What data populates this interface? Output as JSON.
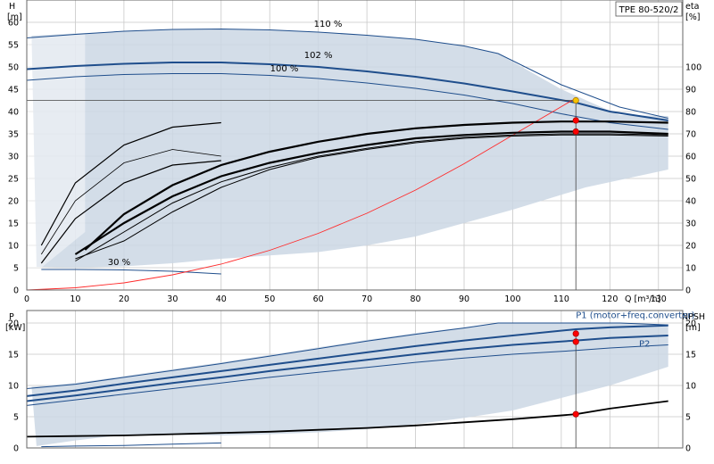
{
  "chart_data": [
    {
      "type": "line",
      "title": "TPE 80-520/2",
      "xlabel": "Q [m³/h]",
      "ylabel": "H",
      "ylabel_unit": "[m]",
      "y2label": "eta",
      "y2label_unit": "[%]",
      "xlim": [
        0,
        135
      ],
      "ylim": [
        0,
        65
      ],
      "y2lim": [
        0,
        130
      ],
      "x_ticks": [
        0,
        10,
        20,
        30,
        40,
        50,
        60,
        70,
        80,
        90,
        100,
        110,
        120,
        130
      ],
      "y_ticks": [
        0,
        5,
        10,
        15,
        20,
        25,
        30,
        35,
        40,
        45,
        50,
        55,
        60
      ],
      "y2_ticks": [
        0,
        10,
        20,
        30,
        40,
        50,
        60,
        70,
        80,
        90,
        100
      ],
      "grid": true,
      "curve_labels": [
        {
          "text": "110 %",
          "x": 62,
          "y": 59
        },
        {
          "text": "102 %",
          "x": 60,
          "y": 52
        },
        {
          "text": "100 %",
          "x": 53,
          "y": 49
        },
        {
          "text": "30 %",
          "x": 19,
          "y": 5.6
        }
      ],
      "envelope_upper": [
        [
          1,
          57
        ],
        [
          10,
          57.5
        ],
        [
          20,
          58
        ],
        [
          30,
          58.4
        ],
        [
          40,
          58.5
        ],
        [
          50,
          58.3
        ],
        [
          60,
          57.8
        ],
        [
          70,
          57.1
        ],
        [
          80,
          56.2
        ],
        [
          90,
          54.7
        ],
        [
          97,
          53
        ],
        [
          110,
          45
        ],
        [
          122,
          39.2
        ],
        [
          132,
          39
        ]
      ],
      "envelope_lower": [
        [
          132,
          27
        ],
        [
          115,
          23
        ],
        [
          100,
          18
        ],
        [
          90,
          15
        ],
        [
          80,
          12
        ],
        [
          70,
          10
        ],
        [
          60,
          8.5
        ],
        [
          40,
          7
        ],
        [
          30,
          6
        ],
        [
          20,
          5.3
        ],
        [
          10,
          5
        ],
        [
          2,
          5.2
        ]
      ],
      "efficiency_band_upper": [
        [
          12,
          13
        ],
        [
          20,
          21.5
        ],
        [
          30,
          26.5
        ],
        [
          40,
          30
        ],
        [
          50,
          33
        ],
        [
          60,
          35
        ],
        [
          70,
          36.5
        ],
        [
          80,
          37.5
        ],
        [
          90,
          37.5
        ],
        [
          100,
          38
        ],
        [
          110,
          38
        ],
        [
          120,
          38
        ],
        [
          132,
          38.5
        ]
      ],
      "series": [
        {
          "name": "110 %",
          "x": [
            0,
            10,
            20,
            30,
            40,
            50,
            60,
            70,
            80,
            90,
            97,
            110,
            122,
            132
          ],
          "y": [
            56.5,
            57.3,
            58,
            58.4,
            58.5,
            58.3,
            57.8,
            57.1,
            56.2,
            54.7,
            53,
            46,
            41,
            38.5
          ]
        },
        {
          "name": "102 %",
          "x": [
            0,
            10,
            20,
            30,
            40,
            50,
            60,
            70,
            80,
            90,
            100,
            113,
            120,
            132
          ],
          "y": [
            49.5,
            50.2,
            50.7,
            51,
            51,
            50.6,
            50,
            49,
            47.8,
            46.3,
            44.5,
            42,
            40,
            38
          ]
        },
        {
          "name": "100 %",
          "x": [
            0,
            10,
            20,
            30,
            40,
            50,
            60,
            70,
            80,
            90,
            100,
            110,
            120,
            132
          ],
          "y": [
            47,
            47.8,
            48.3,
            48.5,
            48.5,
            48.1,
            47.4,
            46.4,
            45.2,
            43.7,
            41.8,
            39.5,
            37.5,
            36
          ]
        },
        {
          "name": "30 %",
          "x": [
            3,
            10,
            20,
            30,
            40
          ],
          "y": [
            4.6,
            4.6,
            4.5,
            4.2,
            3.6
          ]
        },
        {
          "name": "system curve",
          "x": [
            0,
            10,
            20,
            30,
            40,
            50,
            60,
            70,
            80,
            90,
            100,
            113
          ],
          "y": [
            0,
            0.5,
            1.6,
            3.4,
            5.8,
            8.9,
            12.7,
            17.2,
            22.4,
            28.3,
            34.7,
            43
          ]
        },
        {
          "name": "eta 110 %",
          "x": [
            12,
            20,
            30,
            40,
            50,
            60,
            70,
            80,
            90,
            100,
            110,
            120,
            132
          ],
          "y2": [
            18,
            34,
            47,
            56,
            62,
            66.5,
            70,
            72.5,
            74,
            75,
            75.5,
            75.5,
            75
          ]
        },
        {
          "name": "eta 100 %",
          "x": [
            10,
            20,
            30,
            40,
            50,
            60,
            70,
            80,
            90,
            100,
            110,
            120,
            132
          ],
          "y2": [
            16,
            30,
            42,
            51,
            57,
            61.5,
            65,
            68,
            69.5,
            70.5,
            71,
            71,
            70
          ]
        },
        {
          "name": "eta mid",
          "x": [
            3,
            10,
            20,
            30,
            40
          ],
          "y2": [
            20,
            48,
            65,
            73,
            75
          ]
        },
        {
          "name": "eta low",
          "x": [
            3,
            10,
            20,
            30,
            40
          ],
          "y2": [
            12,
            32,
            48,
            56,
            58
          ]
        }
      ],
      "vertical_line_x": 113,
      "horizontal_line_y": 42.5,
      "operating_points": [
        {
          "x": 113,
          "y": 42.5,
          "color": "#f5c400"
        },
        {
          "x": 113,
          "y2": 76,
          "color": "#ff0000"
        },
        {
          "x": 113,
          "y2": 71,
          "color": "#ff0000"
        }
      ]
    },
    {
      "type": "line",
      "ylabel": "P",
      "ylabel_unit": "[kW]",
      "y2label": "NPSH",
      "y2label_unit": "[m]",
      "xlim": [
        0,
        135
      ],
      "ylim": [
        0,
        22
      ],
      "y_ticks": [
        0,
        5,
        10,
        15,
        20
      ],
      "y2_ticks": [
        0,
        5,
        10,
        15,
        20
      ],
      "grid": true,
      "envelope_upper": [
        [
          1,
          9.8
        ],
        [
          10,
          10.4
        ],
        [
          20,
          11.5
        ],
        [
          30,
          12.6
        ],
        [
          40,
          13.7
        ],
        [
          50,
          14.9
        ],
        [
          60,
          16.1
        ],
        [
          70,
          17.3
        ],
        [
          80,
          18.4
        ],
        [
          90,
          19.3
        ],
        [
          97,
          20
        ],
        [
          110,
          20
        ],
        [
          122,
          20
        ],
        [
          132,
          19.7
        ]
      ],
      "envelope_lower": [
        [
          132,
          13
        ],
        [
          120,
          10
        ],
        [
          110,
          8
        ],
        [
          100,
          6
        ],
        [
          90,
          4.8
        ],
        [
          80,
          3.8
        ],
        [
          70,
          3
        ],
        [
          60,
          2.5
        ],
        [
          50,
          2.2
        ],
        [
          40,
          2
        ],
        [
          30,
          2.1
        ],
        [
          20,
          2.1
        ],
        [
          10,
          1.2
        ],
        [
          2,
          0.3
        ]
      ],
      "series": [
        {
          "name": "P1 (motor+freq.converter)",
          "x": [
            0,
            10,
            20,
            30,
            40,
            50,
            60,
            70,
            80,
            90,
            100,
            113,
            120,
            132
          ],
          "y": [
            8.3,
            9.2,
            10.3,
            11.3,
            12.3,
            13.3,
            14.3,
            15.3,
            16.3,
            17.2,
            18,
            19,
            19.3,
            19.6
          ]
        },
        {
          "name": "P2",
          "x": [
            0,
            10,
            20,
            30,
            40,
            50,
            60,
            70,
            80,
            90,
            100,
            113,
            120,
            132
          ],
          "y": [
            7.5,
            8.4,
            9.4,
            10.4,
            11.3,
            12.3,
            13.2,
            14.1,
            15,
            15.8,
            16.5,
            17.2,
            17.6,
            18
          ]
        },
        {
          "name": "P 100 % lower",
          "x": [
            0,
            10,
            20,
            30,
            40,
            50,
            60,
            70,
            80,
            90,
            100,
            113,
            120,
            132
          ],
          "y": [
            6.8,
            7.7,
            8.6,
            9.5,
            10.4,
            11.3,
            12.1,
            12.9,
            13.7,
            14.4,
            15,
            15.6,
            16,
            16.5
          ]
        },
        {
          "name": "P 110 %",
          "x": [
            0,
            10,
            20,
            30,
            40,
            50,
            60,
            70,
            80,
            90,
            97,
            110,
            122,
            132
          ],
          "y": [
            9.5,
            10.2,
            11.3,
            12.4,
            13.5,
            14.7,
            15.9,
            17.1,
            18.2,
            19.2,
            20,
            20,
            20,
            19.7
          ]
        },
        {
          "name": "P 30 %",
          "x": [
            3,
            10,
            20,
            30,
            40
          ],
          "y": [
            0.2,
            0.3,
            0.4,
            0.6,
            0.8
          ]
        },
        {
          "name": "NPSH",
          "x": [
            0,
            10,
            20,
            30,
            40,
            50,
            60,
            70,
            80,
            90,
            100,
            113,
            120,
            132
          ],
          "y": [
            1.8,
            1.9,
            2.0,
            2.2,
            2.4,
            2.6,
            2.9,
            3.2,
            3.6,
            4.1,
            4.6,
            5.4,
            6.3,
            7.5
          ]
        }
      ],
      "vertical_line_x": 113,
      "operating_points": [
        {
          "x": 113,
          "y": 18.3,
          "color": "#ff0000"
        },
        {
          "x": 113,
          "y": 17.0,
          "color": "#ff0000"
        },
        {
          "x": 113,
          "y": 5.4,
          "color": "#ff0000"
        }
      ],
      "series_labels": [
        {
          "text": "P1 (motor+freq.converter)",
          "x": 113,
          "y": 20.8
        },
        {
          "text": "P2",
          "x": 126,
          "y": 16.2
        }
      ]
    }
  ],
  "colors": {
    "envelope": "#cbd7e4",
    "envelope_edge": "#1f4e8c",
    "series_dark": "#1f4e8c",
    "system_curve": "#ff2a2a",
    "grid": "#c8c8c8"
  }
}
